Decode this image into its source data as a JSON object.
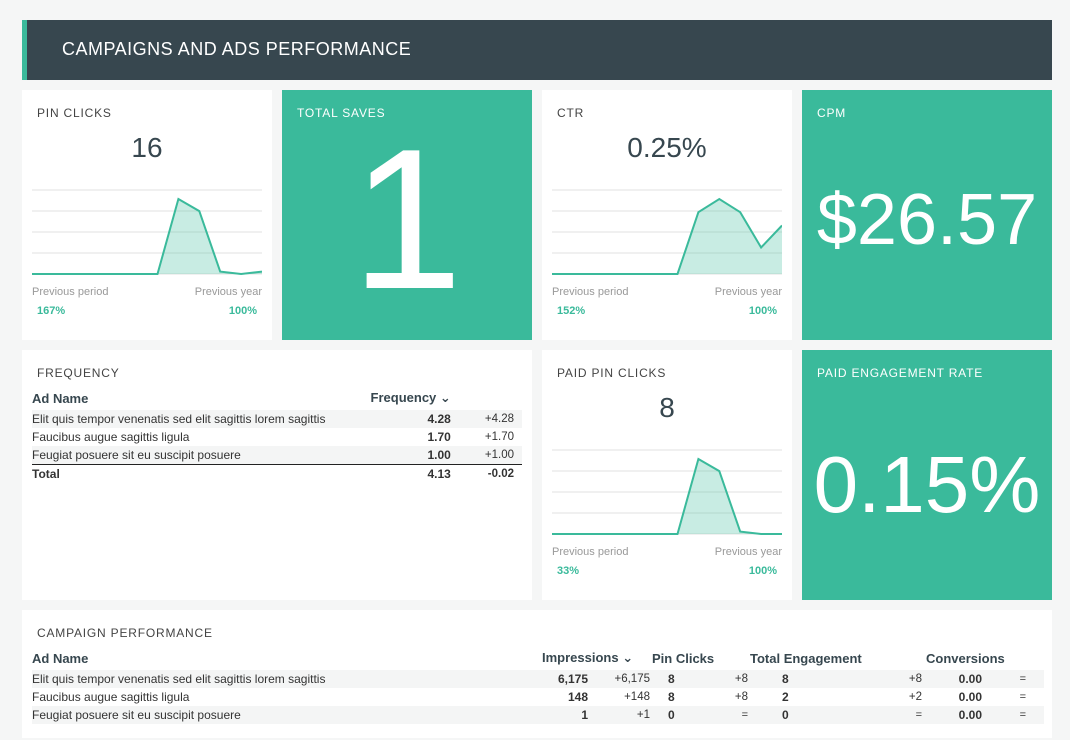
{
  "header": {
    "title": "CAMPAIGNS AND ADS PERFORMANCE"
  },
  "pin_clicks": {
    "title": "PIN CLICKS",
    "value": "16",
    "prev_period_label": "Previous period",
    "prev_year_label": "Previous year",
    "prev_period_value": "167%",
    "prev_year_value": "100%",
    "series": [
      0,
      0,
      0,
      0,
      0,
      0,
      0,
      3.1,
      2.6,
      0.1,
      0,
      0.1
    ]
  },
  "total_saves": {
    "title": "TOTAL SAVES",
    "value": "1"
  },
  "ctr": {
    "title": "CTR",
    "value": "0.25%",
    "prev_period_label": "Previous period",
    "prev_year_label": "Previous year",
    "prev_period_value": "152%",
    "prev_year_value": "100%",
    "series": [
      0,
      0,
      0,
      0,
      0,
      0,
      0,
      1.4,
      1.7,
      1.4,
      0.6,
      1.1
    ]
  },
  "cpm": {
    "title": "CPM",
    "value": "$26.57"
  },
  "frequency": {
    "title": "FREQUENCY",
    "col_name": "Ad Name",
    "col_freq": "Frequency",
    "rows": [
      {
        "name": "Elit quis tempor venenatis sed elit sagittis lorem sagittis",
        "value": "4.28",
        "delta": "+4.28"
      },
      {
        "name": "Faucibus augue sagittis ligula",
        "value": "1.70",
        "delta": "+1.70"
      },
      {
        "name": "Feugiat posuere sit eu suscipit posuere",
        "value": "1.00",
        "delta": "+1.00"
      }
    ],
    "total": {
      "name": "Total",
      "value": "4.13",
      "delta": "-0.02"
    }
  },
  "paid_pin_clicks": {
    "title": "PAID PIN CLICKS",
    "value": "8",
    "prev_period_label": "Previous period",
    "prev_year_label": "Previous year",
    "prev_period_value": "33%",
    "prev_year_value": "100%",
    "series": [
      0,
      0,
      0,
      0,
      0,
      0,
      0,
      3.1,
      2.6,
      0.1,
      0,
      0
    ]
  },
  "paid_engagement_rate": {
    "title": "PAID ENGAGEMENT RATE",
    "value": "0.15%"
  },
  "campaign": {
    "title": "CAMPAIGN PERFORMANCE",
    "col_name": "Ad Name",
    "col_impressions": "Impressions",
    "col_pin_clicks": "Pin Clicks",
    "col_engagement": "Total Engagement",
    "col_conversions": "Conversions",
    "rows": [
      {
        "name": "Elit quis tempor venenatis sed elit sagittis lorem sagittis",
        "imp": "6,175",
        "imp_d": "+6,175",
        "pc": "8",
        "pc_d": "+8",
        "te": "8",
        "te_d": "+8",
        "conv": "0.00",
        "conv_d": "="
      },
      {
        "name": "Faucibus augue sagittis ligula",
        "imp": "148",
        "imp_d": "+148",
        "pc": "8",
        "pc_d": "+8",
        "te": "2",
        "te_d": "+2",
        "conv": "0.00",
        "conv_d": "="
      },
      {
        "name": "Feugiat posuere sit eu suscipit posuere",
        "imp": "1",
        "imp_d": "+1",
        "pc": "0",
        "pc_d": "=",
        "te": "0",
        "te_d": "=",
        "conv": "0.00",
        "conv_d": "="
      }
    ]
  },
  "colors": {
    "accent": "#3aba9b",
    "header": "#37474f",
    "negative": "#e05a4f"
  }
}
